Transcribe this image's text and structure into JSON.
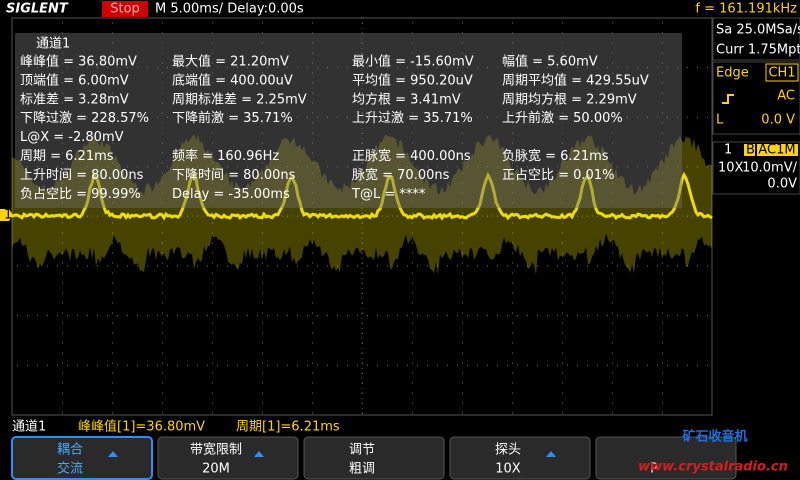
{
  "top_bar": {
    "brand": "SIGLENT",
    "status": "Stop",
    "timebase": "M 5.00ms/ Delay:0.00s",
    "frequency": "f = 161.191kHz"
  },
  "side_panel": {
    "sample_rate": "Sa 25.0MSa/s",
    "memory_depth": "Curr 1.75Mpts",
    "trigger_type": "Edge",
    "trigger_source": "CH1",
    "trigger_coupling": "AC",
    "trigger_level_label": "L",
    "trigger_level": "0.0 V",
    "channel_number": "1",
    "bandwidth_limit_flag": "B",
    "channel_coupling": "AC1M",
    "probe": "10X",
    "volts_per_div": "10.0mV/",
    "offset": "0.0V"
  },
  "measurements": {
    "title": "通道1",
    "rows": [
      [
        "峰峰值 = 36.80mV",
        "最大值 = 21.20mV",
        "最小值 = -15.60mV",
        "幅值 = 5.60mV"
      ],
      [
        "顶端值 = 6.00mV",
        "底端值 = 400.00uV",
        "平均值 = 950.20uV",
        "周期平均值 = 429.55uV"
      ],
      [
        "标准差 = 3.28mV",
        "周期标准差 = 2.25mV",
        "均方根 = 3.41mV",
        "周期均方根 = 2.29mV"
      ],
      [
        "下降过激 = 228.57%",
        "下降前激 = 35.71%",
        "上升过激 = 35.71%",
        "上升前激 = 50.00%"
      ],
      [
        "L@X = -2.80mV"
      ],
      [
        "周期 = 6.21ms",
        "频率 = 160.96Hz",
        "正脉宽 = 400.00ns",
        "负脉宽 = 6.21ms"
      ],
      [
        "上升时间 = 80.00ns",
        "下降时间 = 80.00ns",
        "脉宽 = 70.00ns",
        "正占空比 = 0.01%"
      ],
      [
        "负占空比 = 99.99%",
        "Delay = -35.00ms",
        "T@L = ****"
      ]
    ]
  },
  "channel_marker": "1",
  "status_bar": {
    "channel": "通道1",
    "items": [
      "峰峰值[1]=36.80mV",
      "周期[1]=6.21ms"
    ]
  },
  "softkeys": [
    {
      "label": "耦合",
      "value": "交流"
    },
    {
      "label": "带宽限制",
      "value": "20M"
    },
    {
      "label": "调节",
      "value": "粗调"
    },
    {
      "label": "探头",
      "value": "10X"
    },
    {
      "value": "P"
    }
  ],
  "watermark": {
    "title": "矿石收音机",
    "url": "www.crystalradio.cn"
  }
}
